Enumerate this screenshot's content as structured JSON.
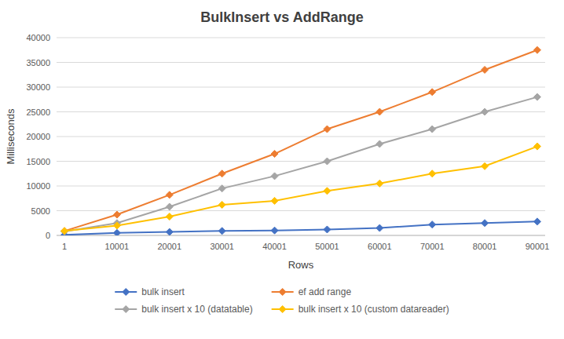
{
  "chart_data": {
    "type": "line",
    "title": "BulkInsert vs AddRange",
    "x_label": "Rows",
    "y_label": "Milliseconds",
    "x": [
      1,
      10001,
      20001,
      30001,
      40001,
      50001,
      60001,
      70001,
      80001,
      90001
    ],
    "series": [
      {
        "name": "bulk insert",
        "color": "#4472C4",
        "marker": "diamond",
        "values": [
          100,
          500,
          700,
          900,
          1000,
          1200,
          1500,
          2200,
          2500,
          2800
        ]
      },
      {
        "name": "ef add range",
        "color": "#ED7D31",
        "marker": "diamond",
        "values": [
          900,
          4200,
          8200,
          12500,
          16500,
          21500,
          25000,
          29000,
          33500,
          37500
        ]
      },
      {
        "name": "bulk insert x 10 (datatable)",
        "color": "#A5A5A5",
        "marker": "diamond",
        "values": [
          800,
          2500,
          5800,
          9500,
          12000,
          15000,
          18500,
          21500,
          25000,
          28000
        ]
      },
      {
        "name": "bulk insert x 10 (custom datareader)",
        "color": "#FFC000",
        "marker": "diamond",
        "values": [
          900,
          2000,
          3800,
          6200,
          7000,
          9000,
          10500,
          12500,
          14000,
          18000
        ]
      }
    ],
    "xlim": [
      -1499,
      91501
    ],
    "xticks": [
      1,
      10001,
      20001,
      30001,
      40001,
      50001,
      60001,
      70001,
      80001,
      90001
    ],
    "ylim": [
      0,
      40000
    ],
    "yticks": [
      0,
      5000,
      10000,
      15000,
      20000,
      25000,
      30000,
      35000,
      40000
    ],
    "grid": true,
    "legend": "bottom"
  }
}
